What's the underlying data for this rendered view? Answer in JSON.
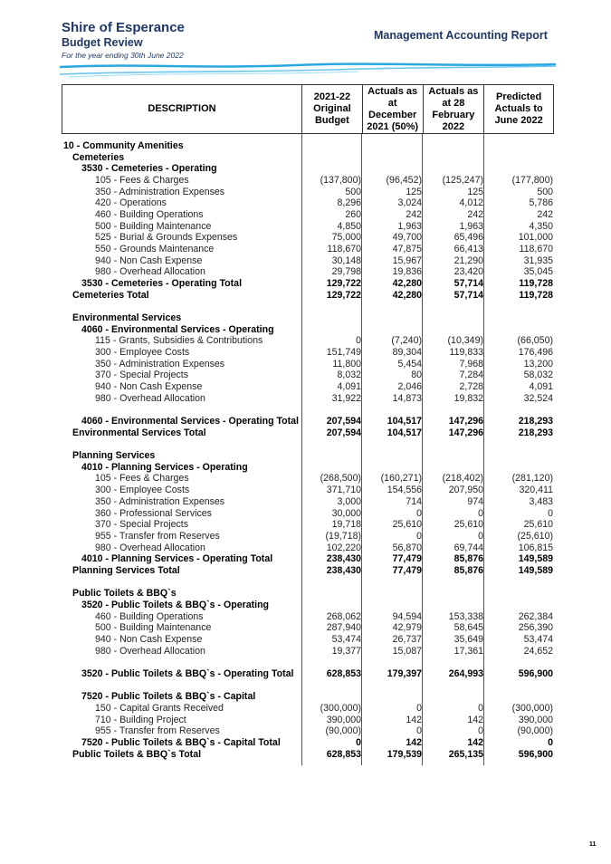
{
  "header": {
    "organisation": "Shire of Esperance",
    "subtitle": "Budget Review",
    "period": "For the year ending 30th June 2022",
    "report_title": "Management Accounting Report",
    "accent_color": "#1f3864",
    "wave_color": "#29a8e0"
  },
  "table": {
    "columns": [
      "DESCRIPTION",
      "2021-22 Original Budget",
      "Actuals as at December 2021 (50%)",
      "Actuals as at 28 February 2022",
      "Predicted Actuals to June 2022"
    ],
    "rows": [
      {
        "label": "10 - Community Amenities",
        "indent": 0,
        "bold": true,
        "values": [
          "",
          "",
          "",
          ""
        ]
      },
      {
        "label": "Cemeteries",
        "indent": 1,
        "bold": true,
        "values": [
          "",
          "",
          "",
          ""
        ]
      },
      {
        "label": "3530 - Cemeteries - Operating",
        "indent": 2,
        "bold": true,
        "values": [
          "",
          "",
          "",
          ""
        ]
      },
      {
        "label": "105 - Fees & Charges",
        "indent": 3,
        "values": [
          "(137,800)",
          "(96,452)",
          "(125,247)",
          "(177,800)"
        ]
      },
      {
        "label": "350 - Administration Expenses",
        "indent": 3,
        "values": [
          "500",
          "125",
          "125",
          "500"
        ]
      },
      {
        "label": "420 - Operations",
        "indent": 3,
        "values": [
          "8,296",
          "3,024",
          "4,012",
          "5,786"
        ]
      },
      {
        "label": "460 - Building Operations",
        "indent": 3,
        "values": [
          "260",
          "242",
          "242",
          "242"
        ]
      },
      {
        "label": "500 - Building Maintenance",
        "indent": 3,
        "values": [
          "4,850",
          "1,963",
          "1,963",
          "4,350"
        ]
      },
      {
        "label": "525 - Burial & Grounds Expenses",
        "indent": 3,
        "values": [
          "75,000",
          "49,700",
          "65,496",
          "101,000"
        ]
      },
      {
        "label": "550 - Grounds Maintenance",
        "indent": 3,
        "values": [
          "118,670",
          "47,875",
          "66,413",
          "118,670"
        ]
      },
      {
        "label": "940 - Non Cash Expense",
        "indent": 3,
        "values": [
          "30,148",
          "15,967",
          "21,290",
          "31,935"
        ]
      },
      {
        "label": "980 - Overhead Allocation",
        "indent": 3,
        "values": [
          "29,798",
          "19,836",
          "23,420",
          "35,045"
        ]
      },
      {
        "label": "3530 - Cemeteries - Operating Total",
        "indent": 2,
        "bold": true,
        "values": [
          "129,722",
          "42,280",
          "57,714",
          "119,728"
        ]
      },
      {
        "label": "Cemeteries Total",
        "indent": 1,
        "bold": true,
        "values": [
          "129,722",
          "42,280",
          "57,714",
          "119,728"
        ]
      },
      {
        "label": "",
        "indent": 0,
        "values": [
          "",
          "",
          "",
          ""
        ]
      },
      {
        "label": "Environmental Services",
        "indent": 1,
        "bold": true,
        "values": [
          "",
          "",
          "",
          ""
        ]
      },
      {
        "label": "4060 - Environmental Services - Operating",
        "indent": 2,
        "bold": true,
        "values": [
          "",
          "",
          "",
          ""
        ]
      },
      {
        "label": "115 - Grants, Subsidies & Contributions",
        "indent": 3,
        "values": [
          "0",
          "(7,240)",
          "(10,349)",
          "(66,050)"
        ]
      },
      {
        "label": "300 - Employee Costs",
        "indent": 3,
        "values": [
          "151,749",
          "89,304",
          "119,833",
          "176,496"
        ]
      },
      {
        "label": "350 - Administration Expenses",
        "indent": 3,
        "values": [
          "11,800",
          "5,454",
          "7,968",
          "13,200"
        ]
      },
      {
        "label": "370 - Special Projects",
        "indent": 3,
        "values": [
          "8,032",
          "80",
          "7,284",
          "58,032"
        ]
      },
      {
        "label": "940 - Non Cash Expense",
        "indent": 3,
        "values": [
          "4,091",
          "2,046",
          "2,728",
          "4,091"
        ]
      },
      {
        "label": "980 - Overhead Allocation",
        "indent": 3,
        "values": [
          "31,922",
          "14,873",
          "19,832",
          "32,524"
        ]
      },
      {
        "label": "",
        "indent": 0,
        "values": [
          "",
          "",
          "",
          ""
        ]
      },
      {
        "label": "4060 - Environmental Services - Operating Total",
        "indent": 2,
        "bold": true,
        "values": [
          "207,594",
          "104,517",
          "147,296",
          "218,293"
        ]
      },
      {
        "label": "Environmental Services Total",
        "indent": 1,
        "bold": true,
        "values": [
          "207,594",
          "104,517",
          "147,296",
          "218,293"
        ]
      },
      {
        "label": "",
        "indent": 0,
        "values": [
          "",
          "",
          "",
          ""
        ]
      },
      {
        "label": "Planning Services",
        "indent": 1,
        "bold": true,
        "values": [
          "",
          "",
          "",
          ""
        ]
      },
      {
        "label": "4010 - Planning Services - Operating",
        "indent": 2,
        "bold": true,
        "values": [
          "",
          "",
          "",
          ""
        ]
      },
      {
        "label": "105 - Fees & Charges",
        "indent": 3,
        "values": [
          "(268,500)",
          "(160,271)",
          "(218,402)",
          "(281,120)"
        ]
      },
      {
        "label": "300 - Employee Costs",
        "indent": 3,
        "values": [
          "371,710",
          "154,556",
          "207,950",
          "320,411"
        ]
      },
      {
        "label": "350 - Administration Expenses",
        "indent": 3,
        "values": [
          "3,000",
          "714",
          "974",
          "3,483"
        ]
      },
      {
        "label": "360 - Professional Services",
        "indent": 3,
        "values": [
          "30,000",
          "0",
          "0",
          "0"
        ]
      },
      {
        "label": "370 - Special Projects",
        "indent": 3,
        "values": [
          "19,718",
          "25,610",
          "25,610",
          "25,610"
        ]
      },
      {
        "label": "955 - Transfer from Reserves",
        "indent": 3,
        "values": [
          "(19,718)",
          "0",
          "0",
          "(25,610)"
        ]
      },
      {
        "label": "980 - Overhead Allocation",
        "indent": 3,
        "values": [
          "102,220",
          "56,870",
          "69,744",
          "106,815"
        ]
      },
      {
        "label": "4010 - Planning Services - Operating Total",
        "indent": 2,
        "bold": true,
        "values": [
          "238,430",
          "77,479",
          "85,876",
          "149,589"
        ]
      },
      {
        "label": "Planning Services Total",
        "indent": 1,
        "bold": true,
        "values": [
          "238,430",
          "77,479",
          "85,876",
          "149,589"
        ]
      },
      {
        "label": "",
        "indent": 0,
        "values": [
          "",
          "",
          "",
          ""
        ]
      },
      {
        "label": "Public Toilets & BBQ`s",
        "indent": 1,
        "bold": true,
        "values": [
          "",
          "",
          "",
          ""
        ]
      },
      {
        "label": "3520 - Public Toilets & BBQ`s  - Operating",
        "indent": 2,
        "bold": true,
        "values": [
          "",
          "",
          "",
          ""
        ]
      },
      {
        "label": "460 - Building Operations",
        "indent": 3,
        "values": [
          "268,062",
          "94,594",
          "153,338",
          "262,384"
        ]
      },
      {
        "label": "500 - Building Maintenance",
        "indent": 3,
        "values": [
          "287,940",
          "42,979",
          "58,645",
          "256,390"
        ]
      },
      {
        "label": "940 - Non Cash Expense",
        "indent": 3,
        "values": [
          "53,474",
          "26,737",
          "35,649",
          "53,474"
        ]
      },
      {
        "label": "980 - Overhead Allocation",
        "indent": 3,
        "values": [
          "19,377",
          "15,087",
          "17,361",
          "24,652"
        ]
      },
      {
        "label": "",
        "indent": 0,
        "values": [
          "",
          "",
          "",
          ""
        ]
      },
      {
        "label": "3520 - Public Toilets & BBQ`s  - Operating Total",
        "indent": 2,
        "bold": true,
        "values": [
          "628,853",
          "179,397",
          "264,993",
          "596,900"
        ]
      },
      {
        "label": "",
        "indent": 0,
        "values": [
          "",
          "",
          "",
          ""
        ]
      },
      {
        "label": "7520 - Public Toilets & BBQ`s - Capital",
        "indent": 2,
        "bold": true,
        "values": [
          "",
          "",
          "",
          ""
        ]
      },
      {
        "label": "150 - Capital Grants Received",
        "indent": 3,
        "values": [
          "(300,000)",
          "0",
          "0",
          "(300,000)"
        ]
      },
      {
        "label": "710 - Building Project",
        "indent": 3,
        "values": [
          "390,000",
          "142",
          "142",
          "390,000"
        ]
      },
      {
        "label": "955 - Transfer from Reserves",
        "indent": 3,
        "values": [
          "(90,000)",
          "0",
          "0",
          "(90,000)"
        ]
      },
      {
        "label": "7520 - Public Toilets & BBQ`s - Capital Total",
        "indent": 2,
        "bold": true,
        "values": [
          "0",
          "142",
          "142",
          "0"
        ]
      },
      {
        "label": "Public Toilets & BBQ`s Total",
        "indent": 1,
        "bold": true,
        "values": [
          "628,853",
          "179,539",
          "265,135",
          "596,900"
        ]
      }
    ]
  },
  "footer": {
    "page_number": "11"
  }
}
